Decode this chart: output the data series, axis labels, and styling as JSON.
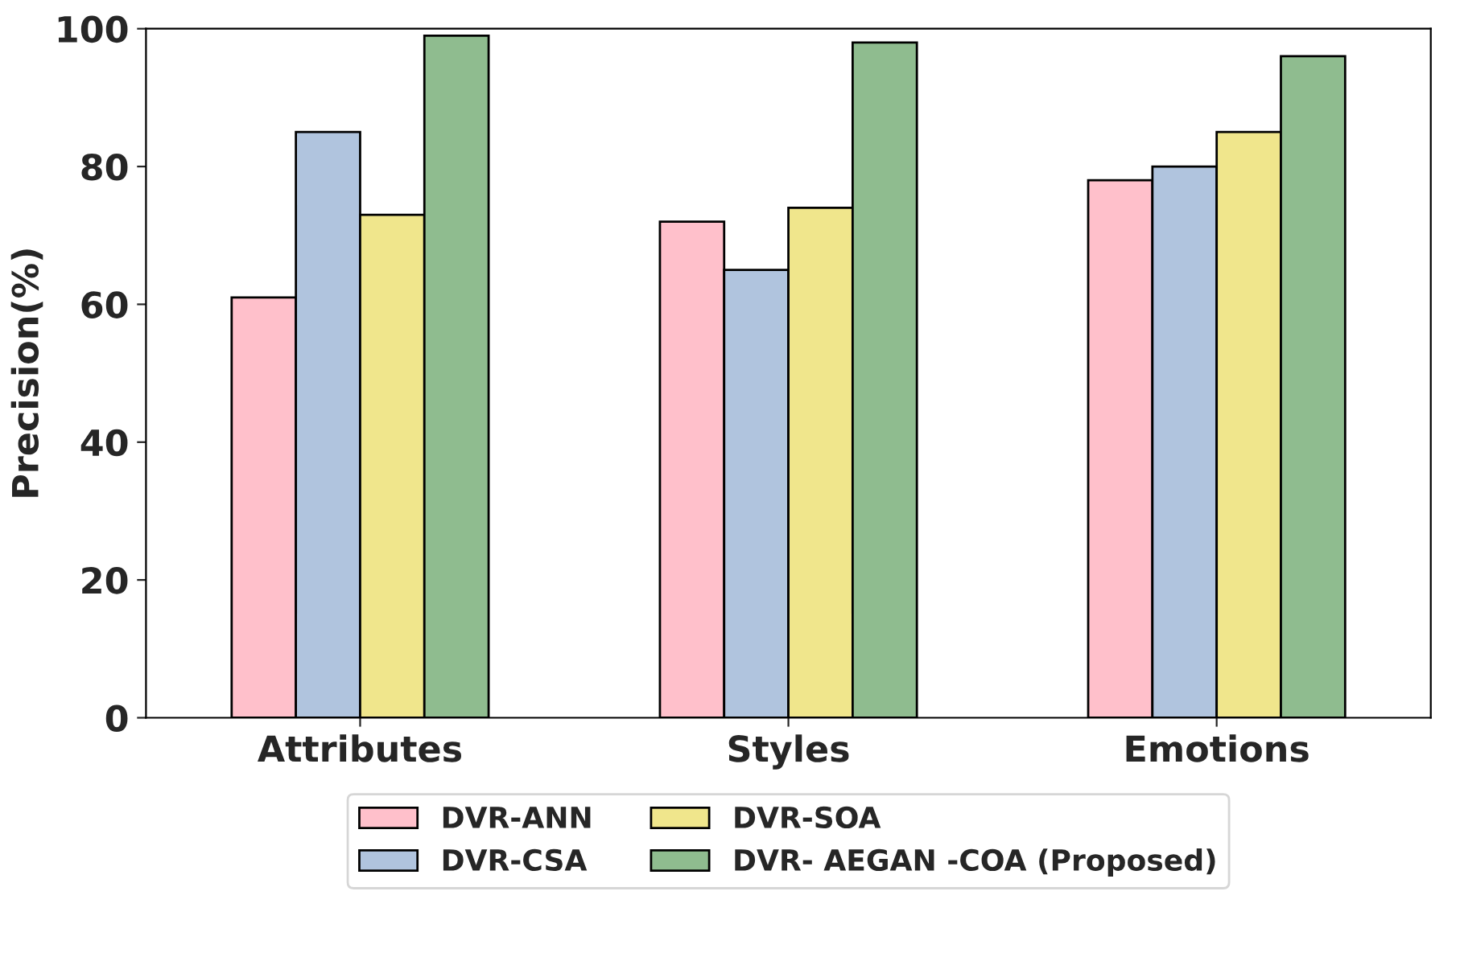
{
  "chart_data": {
    "type": "bar",
    "ylabel": "Precision(%)",
    "categories": [
      "Attributes",
      "Styles",
      "Emotions"
    ],
    "series": [
      {
        "name": "DVR-ANN",
        "color": "#ffc0cb",
        "values": [
          61,
          72,
          78
        ]
      },
      {
        "name": "DVR-CSA",
        "color": "#b0c4de",
        "values": [
          85,
          65,
          80
        ]
      },
      {
        "name": "DVR-SOA",
        "color": "#f0e68c",
        "values": [
          73,
          74,
          85
        ]
      },
      {
        "name": "DVR- AEGAN -COA (Proposed)",
        "color": "#8fbc8f",
        "values": [
          99,
          98,
          96
        ]
      }
    ],
    "ylim": [
      0,
      100
    ],
    "yticks": [
      0,
      20,
      40,
      60,
      80,
      100
    ],
    "grid": false,
    "legend": "bottom"
  }
}
